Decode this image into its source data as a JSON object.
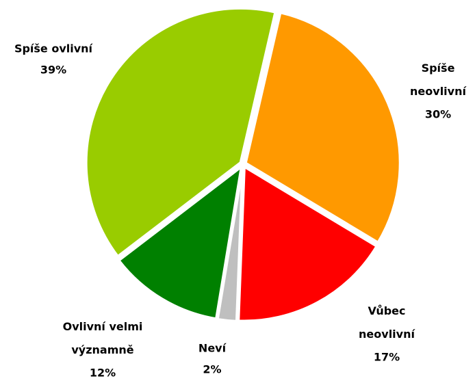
{
  "chart_data": {
    "type": "pie",
    "categories": [
      "Spíše neovlivní",
      "Vůbec neovlivní",
      "Neví",
      "Ovlivní velmi významně",
      "Spíše ovlivní"
    ],
    "values": [
      30,
      17,
      2,
      12,
      39
    ],
    "value_labels": [
      "30%",
      "17%",
      "2%",
      "12%",
      "39%"
    ],
    "colors": [
      "#ff9900",
      "#ff0000",
      "#bfbfbf",
      "#008000",
      "#99cc00"
    ]
  }
}
